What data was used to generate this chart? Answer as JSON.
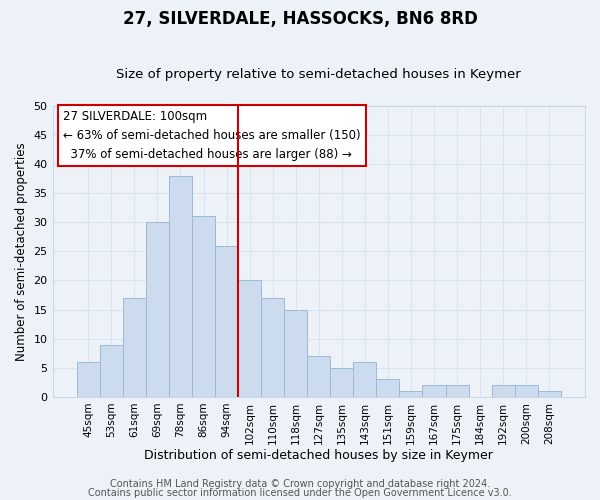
{
  "title": "27, SILVERDALE, HASSOCKS, BN6 8RD",
  "subtitle": "Size of property relative to semi-detached houses in Keymer",
  "xlabel": "Distribution of semi-detached houses by size in Keymer",
  "ylabel": "Number of semi-detached properties",
  "categories": [
    "45sqm",
    "53sqm",
    "61sqm",
    "69sqm",
    "78sqm",
    "86sqm",
    "94sqm",
    "102sqm",
    "110sqm",
    "118sqm",
    "127sqm",
    "135sqm",
    "143sqm",
    "151sqm",
    "159sqm",
    "167sqm",
    "175sqm",
    "184sqm",
    "192sqm",
    "200sqm",
    "208sqm"
  ],
  "values": [
    6,
    9,
    17,
    30,
    38,
    31,
    26,
    20,
    17,
    15,
    7,
    5,
    6,
    3,
    1,
    2,
    2,
    0,
    2,
    2,
    1
  ],
  "bar_color": "#ccdcee",
  "bar_edge_color": "#9bbad4",
  "vline_x_index": 7.0,
  "vline_color": "#cc0000",
  "annotation_text": "27 SILVERDALE: 100sqm\n← 63% of semi-detached houses are smaller (150)\n  37% of semi-detached houses are larger (88) →",
  "annotation_box_color": "#ffffff",
  "annotation_box_edge_color": "#cc0000",
  "ylim": [
    0,
    50
  ],
  "yticks": [
    0,
    5,
    10,
    15,
    20,
    25,
    30,
    35,
    40,
    45,
    50
  ],
  "footer1": "Contains HM Land Registry data © Crown copyright and database right 2024.",
  "footer2": "Contains public sector information licensed under the Open Government Licence v3.0.",
  "background_color": "#edf2f8",
  "grid_color": "#d8e4f0",
  "title_fontsize": 12,
  "subtitle_fontsize": 9.5,
  "xlabel_fontsize": 9,
  "ylabel_fontsize": 8.5,
  "footer_fontsize": 7
}
